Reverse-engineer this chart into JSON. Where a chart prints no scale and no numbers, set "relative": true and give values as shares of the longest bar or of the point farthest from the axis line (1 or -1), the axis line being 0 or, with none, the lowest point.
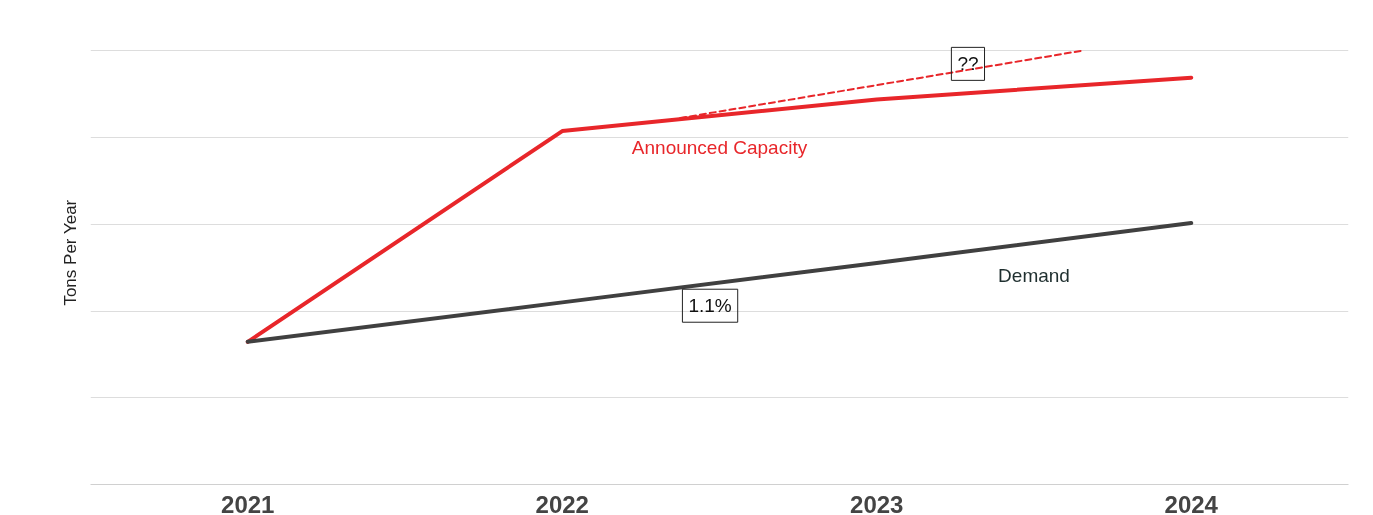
{
  "chart_data": {
    "type": "line",
    "relative": true,
    "ylabel": "Tons Per Year",
    "x": [
      2021,
      2022,
      2023,
      2024
    ],
    "xlim": [
      2020.5,
      2024.5
    ],
    "xticks": [
      2021,
      2022,
      2023,
      2024
    ],
    "grid": "y",
    "tick_labels": "x",
    "line_style": "solid",
    "series": [
      {
        "name": "Announced Capacity",
        "color": "#e8262a",
        "values": [
          0.329,
          0.815,
          0.888,
          0.938
        ]
      },
      {
        "name": "Demand",
        "color": "#404040",
        "values": [
          0.329,
          0.42,
          0.511,
          0.603
        ]
      },
      {
        "color": "#e8262a",
        "x": [
          2022.375,
          2023.65
        ],
        "values": [
          0.845,
          1.0
        ],
        "line_style": "dashed"
      }
    ],
    "annotations": [
      {
        "text": "??",
        "x": 2023.29,
        "y": 0.97
      },
      {
        "text": "1.1%",
        "x": 2022.47,
        "y": 0.463
      }
    ]
  }
}
